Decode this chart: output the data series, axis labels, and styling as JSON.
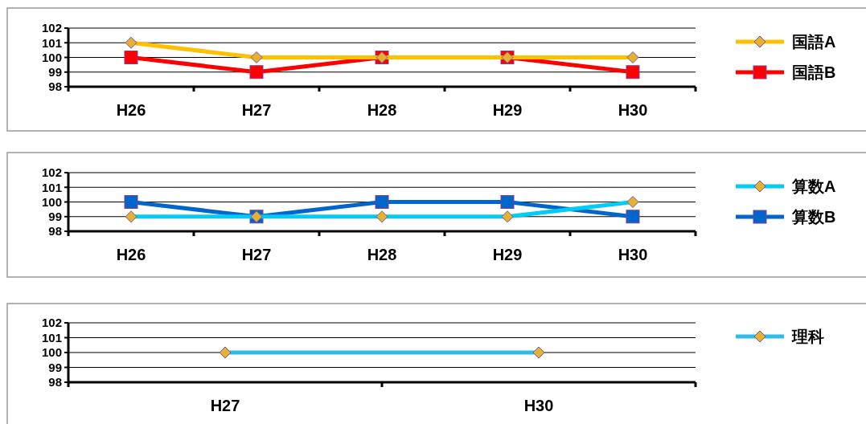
{
  "chart_data": [
    {
      "type": "line",
      "categories": [
        "H26",
        "H27",
        "H28",
        "H29",
        "H30"
      ],
      "ylim": [
        98,
        102
      ],
      "yticks": [
        98,
        99,
        100,
        101,
        102
      ],
      "grid": "y",
      "legend": "right",
      "series": [
        {
          "name": "国語A",
          "color": "#ffc000",
          "marker": "diamond",
          "values": [
            101,
            100,
            100,
            100,
            100
          ]
        },
        {
          "name": "国語B",
          "color": "#ff0000",
          "marker": "square",
          "values": [
            100,
            99,
            100,
            100,
            99
          ]
        }
      ]
    },
    {
      "type": "line",
      "categories": [
        "H26",
        "H27",
        "H28",
        "H29",
        "H30"
      ],
      "ylim": [
        98,
        102
      ],
      "yticks": [
        98,
        99,
        100,
        101,
        102
      ],
      "grid": "y",
      "legend": "right",
      "series": [
        {
          "name": "算数A",
          "color": "#00ccf5",
          "marker": "diamond",
          "values": [
            99,
            99,
            99,
            99,
            100
          ]
        },
        {
          "name": "算数B",
          "color": "#0066cc",
          "marker": "square",
          "values": [
            100,
            99,
            100,
            100,
            99
          ]
        }
      ]
    },
    {
      "type": "line",
      "categories": [
        "H27",
        "H30"
      ],
      "ylim": [
        98,
        102
      ],
      "yticks": [
        98,
        99,
        100,
        101,
        102
      ],
      "grid": "y",
      "legend": "right",
      "series": [
        {
          "name": "理科",
          "color": "#33bbe8",
          "marker": "diamond",
          "values": [
            100,
            100
          ]
        }
      ]
    }
  ]
}
